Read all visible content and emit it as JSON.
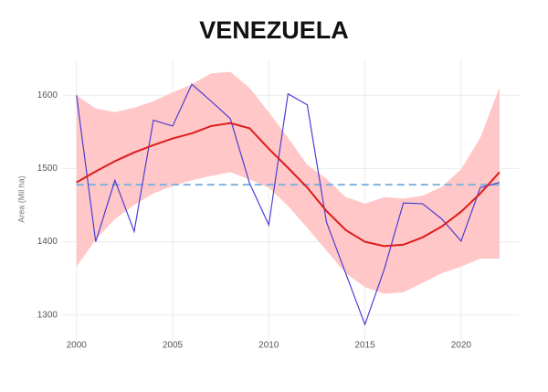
{
  "chart_data": {
    "type": "line",
    "title": "VENEZUELA",
    "y_label": "Area (Mil ha)",
    "x": [
      2000,
      2001,
      2002,
      2003,
      2004,
      2005,
      2006,
      2007,
      2008,
      2009,
      2010,
      2011,
      2012,
      2013,
      2014,
      2015,
      2016,
      2017,
      2018,
      2019,
      2020,
      2021,
      2022
    ],
    "series": [
      {
        "color": "#4a3fd6",
        "values": [
          1600,
          1400,
          1484,
          1414,
          1566,
          1558,
          1615,
          1592,
          1568,
          1480,
          1423,
          1602,
          1587,
          1427,
          1357,
          1287,
          1362,
          1453,
          1452,
          1431,
          1401,
          1474,
          1481
        ]
      },
      {
        "color": "#dd1c1c",
        "values": [
          1481,
          1496,
          1510,
          1522,
          1532,
          1541,
          1548,
          1558,
          1562,
          1555,
          1527,
          1501,
          1474,
          1442,
          1416,
          1400,
          1394,
          1396,
          1406,
          1421,
          1441,
          1466,
          1495
        ]
      }
    ],
    "band": {
      "color": "#ffc7c7",
      "upper": [
        1600,
        1582,
        1577,
        1583,
        1592,
        1604,
        1615,
        1630,
        1632,
        1610,
        1577,
        1542,
        1505,
        1486,
        1461,
        1452,
        1461,
        1459,
        1463,
        1475,
        1499,
        1542,
        1611
      ],
      "lower": [
        1366,
        1403,
        1431,
        1450,
        1466,
        1476,
        1484,
        1490,
        1495,
        1485,
        1474,
        1449,
        1419,
        1388,
        1357,
        1338,
        1329,
        1331,
        1344,
        1357,
        1366,
        1377,
        1377
      ]
    },
    "hline": {
      "value": 1478,
      "color": "#7fb2e0"
    },
    "xlim": [
      1999.3,
      2023
    ],
    "ylim": [
      1266,
      1649
    ],
    "xticks": [
      2000,
      2005,
      2010,
      2015,
      2020
    ],
    "yticks": [
      1300,
      1400,
      1500,
      1600
    ],
    "grid": true
  }
}
